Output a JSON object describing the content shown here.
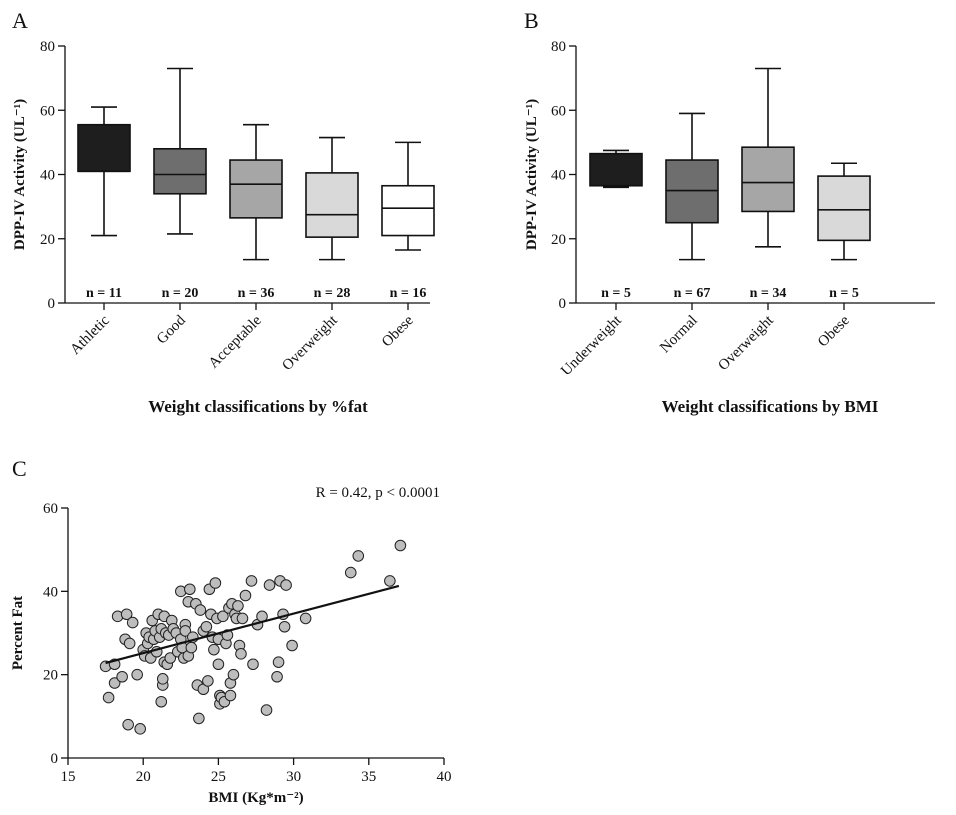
{
  "chart_data": [
    {
      "panel": "A",
      "type": "box",
      "xlabel": "Weight classifications by %fat",
      "ylabel": "DPP-IV Activity (UL⁻¹)",
      "ylim": [
        0,
        80
      ],
      "yticks": [
        0,
        20,
        40,
        60,
        80
      ],
      "categories": [
        "Athletic",
        "Good",
        "Acceptable",
        "Overweight",
        "Obese"
      ],
      "n_labels": [
        "n = 11",
        "n = 20",
        "n = 36",
        "n = 28",
        "n = 16"
      ],
      "colors": [
        "#1e1e1e",
        "#6e6e6e",
        "#a6a6a6",
        "#d9d9d9",
        "#ffffff"
      ],
      "boxes": [
        {
          "min": 21,
          "q1": 41,
          "median": 41,
          "q3": 55.5,
          "max": 61
        },
        {
          "min": 21.5,
          "q1": 34,
          "median": 40,
          "q3": 48,
          "max": 73
        },
        {
          "min": 13.5,
          "q1": 26.5,
          "median": 37,
          "q3": 44.5,
          "max": 55.5
        },
        {
          "min": 13.5,
          "q1": 20.5,
          "median": 27.5,
          "q3": 40.5,
          "max": 51.5
        },
        {
          "min": 16.5,
          "q1": 21,
          "median": 29.5,
          "q3": 36.5,
          "max": 50
        }
      ]
    },
    {
      "panel": "B",
      "type": "box",
      "xlabel": "Weight classifications by BMI",
      "ylabel": "DPP-IV Activity (UL⁻¹)",
      "ylim": [
        0,
        80
      ],
      "yticks": [
        0,
        20,
        40,
        60,
        80
      ],
      "categories": [
        "Underweight",
        "Normal",
        "Overweight",
        "Obese"
      ],
      "n_labels": [
        "n = 5",
        "n = 67",
        "n = 34",
        "n = 5"
      ],
      "colors": [
        "#1e1e1e",
        "#6e6e6e",
        "#a6a6a6",
        "#d9d9d9"
      ],
      "boxes": [
        {
          "min": 36,
          "q1": 36.5,
          "median": 36.5,
          "q3": 46.5,
          "max": 47.5
        },
        {
          "min": 13.5,
          "q1": 25,
          "median": 35,
          "q3": 44.5,
          "max": 59
        },
        {
          "min": 17.5,
          "q1": 28.5,
          "median": 37.5,
          "q3": 48.5,
          "max": 73
        },
        {
          "min": 13.5,
          "q1": 19.5,
          "median": 29,
          "q3": 39.5,
          "max": 43.5
        }
      ]
    },
    {
      "panel": "C",
      "type": "scatter",
      "xlabel": "BMI (Kg*m⁻²)",
      "ylabel": "Percent Fat",
      "xlim": [
        15,
        40
      ],
      "ylim": [
        0,
        60
      ],
      "xticks": [
        15,
        20,
        25,
        30,
        35,
        40
      ],
      "yticks": [
        0,
        20,
        40,
        60
      ],
      "annotation": "R = 0.42, p < 0.0001",
      "fit_line": [
        [
          17.5,
          22.8
        ],
        [
          37,
          41.3
        ]
      ],
      "points": [
        [
          17.5,
          22
        ],
        [
          17.7,
          14.5
        ],
        [
          18.1,
          22.5
        ],
        [
          18.1,
          18
        ],
        [
          18.3,
          34
        ],
        [
          18.6,
          19.5
        ],
        [
          18.8,
          28.5
        ],
        [
          18.9,
          34.5
        ],
        [
          19.0,
          8
        ],
        [
          19.1,
          27.5
        ],
        [
          19.3,
          32.5
        ],
        [
          19.6,
          20
        ],
        [
          19.8,
          7
        ],
        [
          20.0,
          26
        ],
        [
          20.1,
          24.5
        ],
        [
          20.2,
          30
        ],
        [
          20.3,
          27.5
        ],
        [
          20.4,
          29
        ],
        [
          20.5,
          24
        ],
        [
          20.6,
          33
        ],
        [
          20.7,
          28.5
        ],
        [
          20.8,
          30.5
        ],
        [
          20.9,
          25.5
        ],
        [
          21.0,
          34.5
        ],
        [
          21.1,
          29
        ],
        [
          21.2,
          13.5
        ],
        [
          21.2,
          31
        ],
        [
          21.3,
          17.5
        ],
        [
          21.3,
          19
        ],
        [
          21.4,
          23
        ],
        [
          21.4,
          34
        ],
        [
          21.5,
          30
        ],
        [
          21.6,
          22.5
        ],
        [
          21.7,
          29.5
        ],
        [
          21.8,
          24
        ],
        [
          21.9,
          33
        ],
        [
          22.0,
          31
        ],
        [
          22.2,
          30
        ],
        [
          22.3,
          25.5
        ],
        [
          22.5,
          28.5
        ],
        [
          22.5,
          40
        ],
        [
          22.6,
          26.5
        ],
        [
          22.7,
          24
        ],
        [
          22.8,
          32
        ],
        [
          22.8,
          30.5
        ],
        [
          23.0,
          37.5
        ],
        [
          23.0,
          24.5
        ],
        [
          23.1,
          40.5
        ],
        [
          23.2,
          26.5
        ],
        [
          23.3,
          29
        ],
        [
          23.5,
          37
        ],
        [
          23.6,
          17.5
        ],
        [
          23.7,
          9.5
        ],
        [
          23.8,
          35.5
        ],
        [
          24.0,
          16.5
        ],
        [
          24.0,
          30.5
        ],
        [
          24.2,
          31.5
        ],
        [
          24.3,
          18.5
        ],
        [
          24.4,
          40.5
        ],
        [
          24.5,
          34.5
        ],
        [
          24.6,
          29
        ],
        [
          24.7,
          26
        ],
        [
          24.8,
          42
        ],
        [
          24.9,
          33.5
        ],
        [
          25.0,
          28.5
        ],
        [
          25.0,
          22.5
        ],
        [
          25.1,
          15
        ],
        [
          25.1,
          13
        ],
        [
          25.2,
          14.5
        ],
        [
          25.3,
          34
        ],
        [
          25.4,
          13.5
        ],
        [
          25.5,
          27.5
        ],
        [
          25.6,
          29.5
        ],
        [
          25.7,
          36
        ],
        [
          25.8,
          18
        ],
        [
          25.8,
          15
        ],
        [
          25.9,
          37
        ],
        [
          26.0,
          20
        ],
        [
          26.1,
          34.5
        ],
        [
          26.2,
          33.5
        ],
        [
          26.3,
          36.5
        ],
        [
          26.4,
          27
        ],
        [
          26.5,
          25
        ],
        [
          26.6,
          33.5
        ],
        [
          26.8,
          39
        ],
        [
          27.2,
          42.5
        ],
        [
          27.3,
          22.5
        ],
        [
          27.6,
          32
        ],
        [
          27.9,
          34
        ],
        [
          28.2,
          11.5
        ],
        [
          28.4,
          41.5
        ],
        [
          28.9,
          19.5
        ],
        [
          29.0,
          23
        ],
        [
          29.1,
          42.5
        ],
        [
          29.3,
          34.5
        ],
        [
          29.4,
          31.5
        ],
        [
          29.5,
          41.5
        ],
        [
          29.9,
          27
        ],
        [
          30.8,
          33.5
        ],
        [
          33.8,
          44.5
        ],
        [
          34.3,
          48.5
        ],
        [
          36.4,
          42.5
        ],
        [
          37.1,
          51
        ]
      ]
    }
  ]
}
